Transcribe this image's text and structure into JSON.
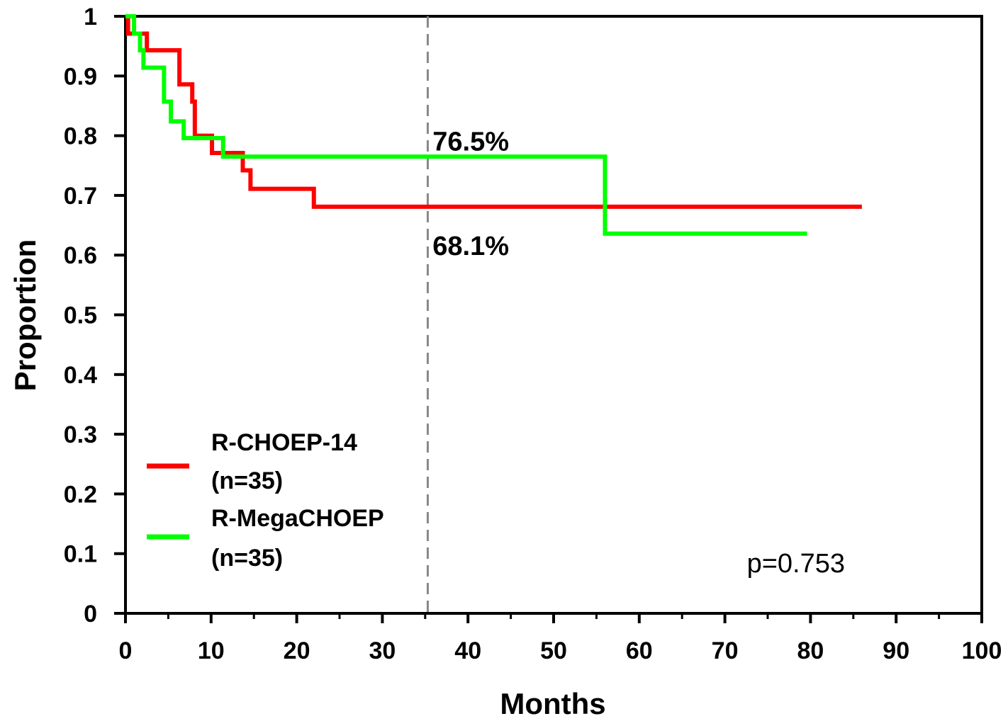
{
  "chart_data": {
    "type": "line",
    "subtype": "kaplan-meier step",
    "xlabel": "Months",
    "ylabel": "Proportion",
    "xlim": [
      0,
      100
    ],
    "ylim": [
      0,
      1
    ],
    "x_ticks": [
      "0",
      "10",
      "20",
      "30",
      "40",
      "50",
      "60",
      "70",
      "80",
      "90",
      "100"
    ],
    "y_ticks": [
      "0",
      "0.1",
      "0.2",
      "0.3",
      "0.4",
      "0.5",
      "0.6",
      "0.7",
      "0.8",
      "0.9",
      "1"
    ],
    "grid": false,
    "legend_position": "bottom-left",
    "reference_line": {
      "x": 35.3,
      "style": "dashed",
      "color": "#888888"
    },
    "series": [
      {
        "name": "R-CHOEP-14",
        "name_line2": "(n=35)",
        "color": "#ff0000",
        "steps": [
          [
            0,
            1.0
          ],
          [
            0.3,
            0.971
          ],
          [
            2.5,
            0.943
          ],
          [
            6.3,
            0.886
          ],
          [
            7.8,
            0.857
          ],
          [
            8.1,
            0.8
          ],
          [
            10.1,
            0.771
          ],
          [
            13.7,
            0.742
          ],
          [
            14.6,
            0.711
          ],
          [
            22.0,
            0.681
          ],
          [
            86.0,
            0.681
          ]
        ]
      },
      {
        "name": "R-MegaCHOEP",
        "name_line2": "(n=35)",
        "color": "#00ff00",
        "steps": [
          [
            0,
            1.0
          ],
          [
            1.0,
            0.971
          ],
          [
            1.7,
            0.943
          ],
          [
            2.1,
            0.914
          ],
          [
            4.5,
            0.857
          ],
          [
            5.3,
            0.824
          ],
          [
            6.8,
            0.796
          ],
          [
            11.4,
            0.765
          ],
          [
            56.0,
            0.636
          ],
          [
            79.6,
            0.636
          ]
        ]
      }
    ],
    "annotations": [
      {
        "text": "76.5%",
        "x": 35.7,
        "y": 0.792
      },
      {
        "text": "68.1%",
        "x": 35.7,
        "y": 0.617
      }
    ],
    "p_value": "p=0.753"
  }
}
